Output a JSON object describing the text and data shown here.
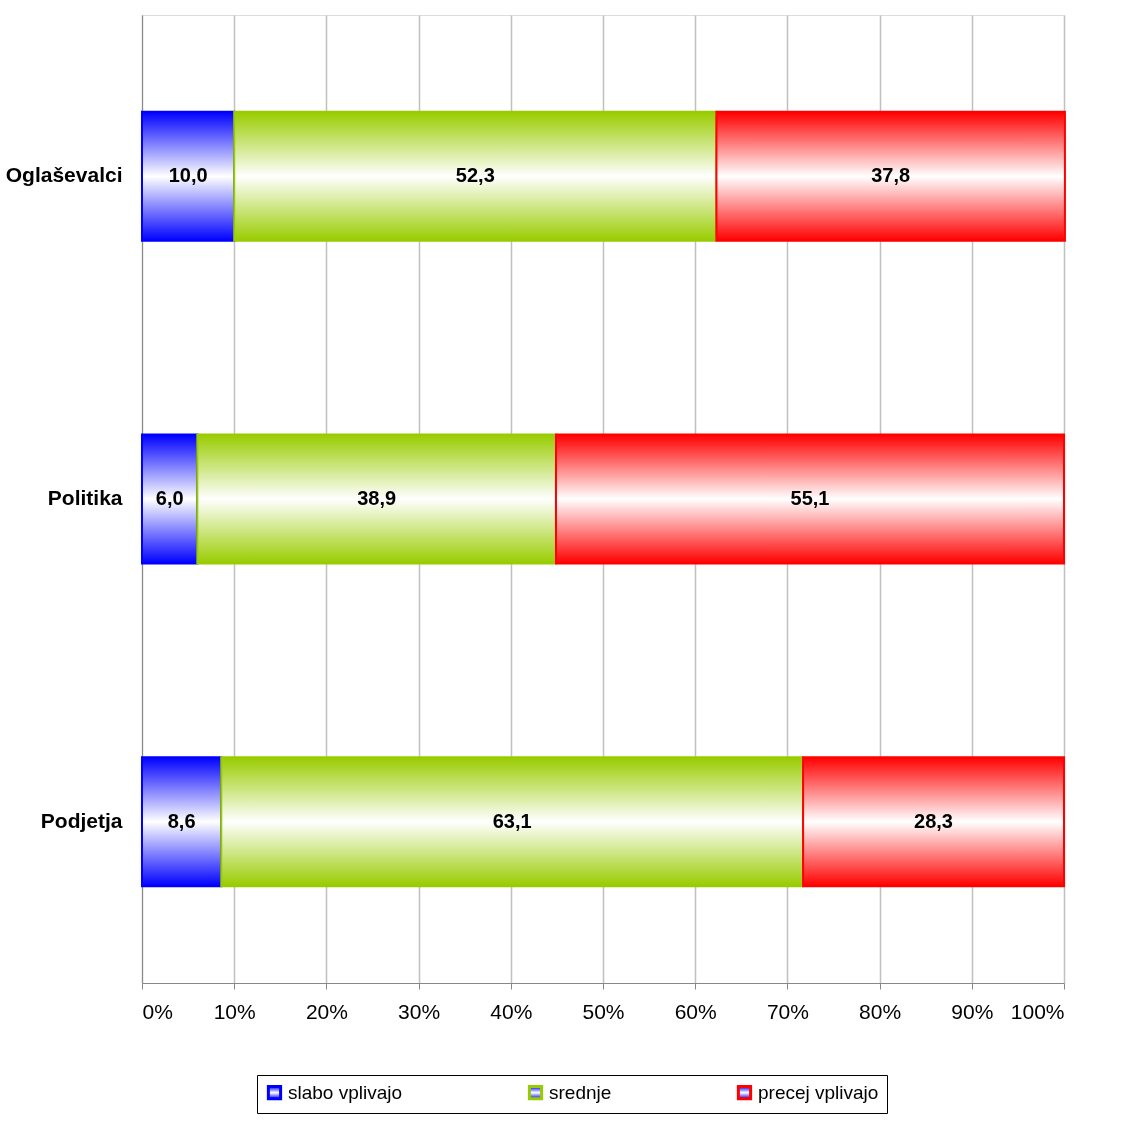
{
  "chart_data": {
    "type": "bar",
    "orientation": "horizontal",
    "stacked": true,
    "categories": [
      "Oglaševalci",
      "Politika",
      "Podjetja"
    ],
    "series": [
      {
        "name": "slabo vplivajo",
        "color": "#0000ff",
        "values": [
          10.0,
          6.0,
          8.6
        ],
        "value_labels": [
          "10,0",
          "6,0",
          "8,6"
        ]
      },
      {
        "name": "srednje",
        "color": "#99cc00",
        "values": [
          52.3,
          38.9,
          63.1
        ],
        "value_labels": [
          "52,3",
          "38,9",
          "63,1"
        ]
      },
      {
        "name": "precej vplivajo",
        "color": "#ff0000",
        "values": [
          37.8,
          55.1,
          28.3
        ],
        "value_labels": [
          "37,8",
          "55,1",
          "28,3"
        ]
      }
    ],
    "xlim": [
      0,
      100
    ],
    "xticks": [
      {
        "value": 0,
        "label": "0%"
      },
      {
        "value": 10,
        "label": "10%"
      },
      {
        "value": 20,
        "label": "20%"
      },
      {
        "value": 30,
        "label": "30%"
      },
      {
        "value": 40,
        "label": "40%"
      },
      {
        "value": 50,
        "label": "50%"
      },
      {
        "value": 60,
        "label": "60%"
      },
      {
        "value": 70,
        "label": "70%"
      },
      {
        "value": 80,
        "label": "80%"
      },
      {
        "value": 90,
        "label": "90%"
      },
      {
        "value": 100,
        "label": "100%"
      }
    ],
    "grid": "x",
    "legend": "bottom"
  }
}
